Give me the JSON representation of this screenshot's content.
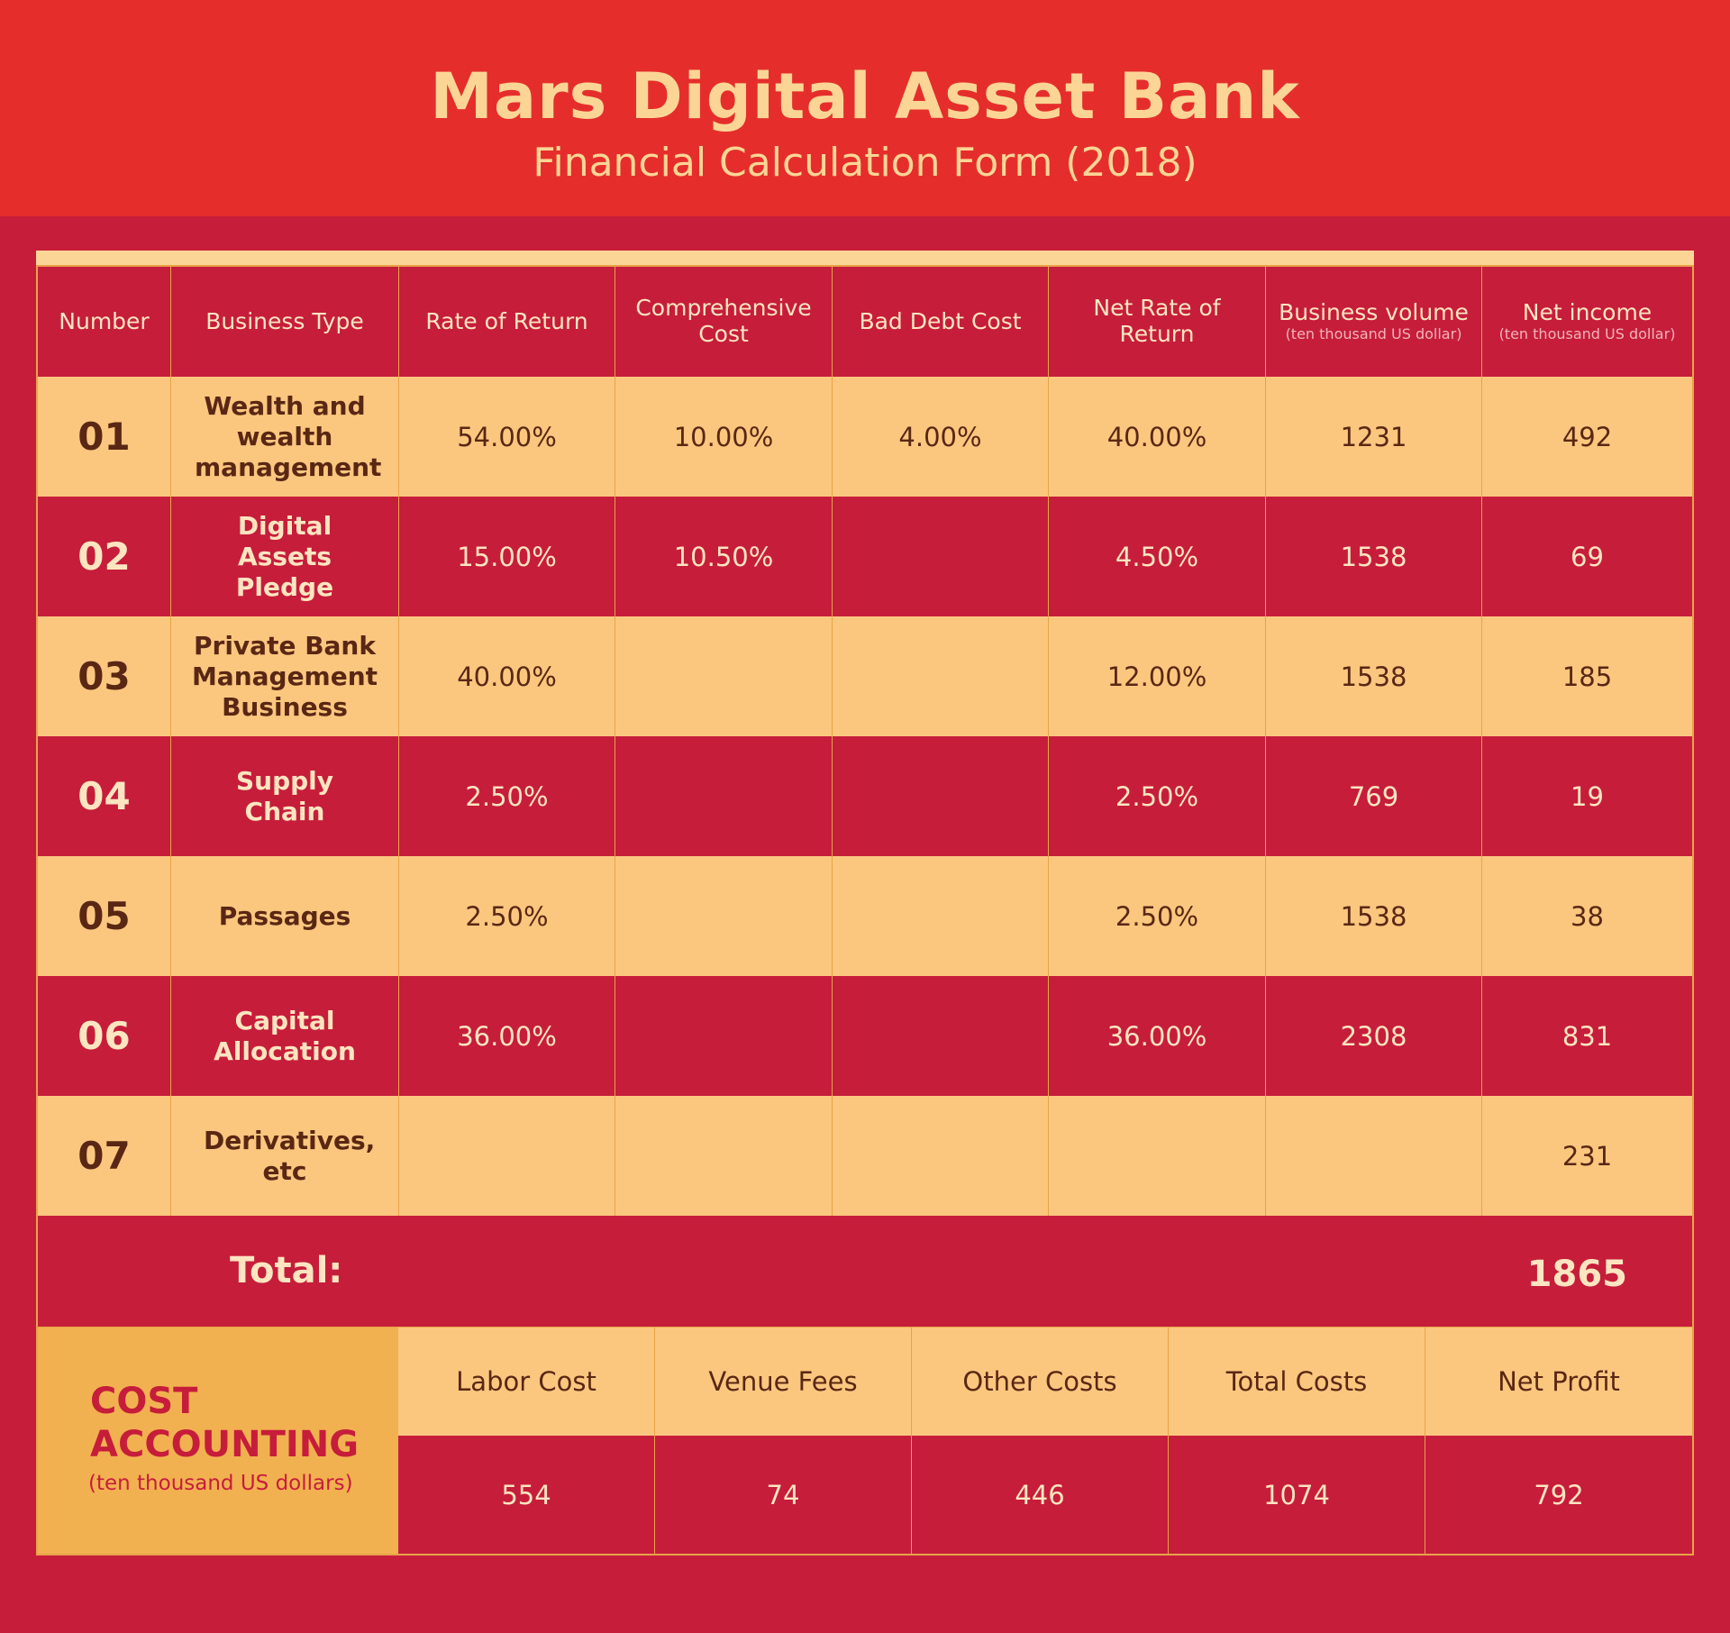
{
  "header": {
    "title": "Mars Digital Asset Bank",
    "subtitle": "Financial Calculation Form (2018)"
  },
  "table": {
    "columns": [
      {
        "label": "Number",
        "unit": ""
      },
      {
        "label": "Business Type",
        "unit": ""
      },
      {
        "label": "Rate of Return",
        "unit": ""
      },
      {
        "label": "Comprehensive Cost",
        "unit": ""
      },
      {
        "label": "Bad Debt Cost",
        "unit": ""
      },
      {
        "label": "Net Rate of Return",
        "unit": ""
      },
      {
        "label": "Business volume",
        "unit": "(ten thousand US dollar)"
      },
      {
        "label": "Net income",
        "unit": "(ten thousand US dollar)"
      }
    ],
    "rows": [
      {
        "number": "01",
        "type": "Wealth and wealth management",
        "rate": "54.00%",
        "comp_cost": "10.00%",
        "bad_debt": "4.00%",
        "net_rate": "40.00%",
        "volume": "1231",
        "net_income": "492"
      },
      {
        "number": "02",
        "type": "Digital Assets Pledge",
        "rate": "15.00%",
        "comp_cost": "10.50%",
        "bad_debt": "",
        "net_rate": "4.50%",
        "volume": "1538",
        "net_income": "69"
      },
      {
        "number": "03",
        "type": "Private Bank Management Business",
        "rate": "40.00%",
        "comp_cost": "",
        "bad_debt": "",
        "net_rate": "12.00%",
        "volume": "1538",
        "net_income": "185"
      },
      {
        "number": "04",
        "type": "Supply Chain",
        "rate": "2.50%",
        "comp_cost": "",
        "bad_debt": "",
        "net_rate": "2.50%",
        "volume": "769",
        "net_income": "19"
      },
      {
        "number": "05",
        "type": "Passages",
        "rate": "2.50%",
        "comp_cost": "",
        "bad_debt": "",
        "net_rate": "2.50%",
        "volume": "1538",
        "net_income": "38"
      },
      {
        "number": "06",
        "type": "Capital Allocation",
        "rate": "36.00%",
        "comp_cost": "",
        "bad_debt": "",
        "net_rate": "36.00%",
        "volume": "2308",
        "net_income": "831"
      },
      {
        "number": "07",
        "type": "Derivatives, etc",
        "rate": "",
        "comp_cost": "",
        "bad_debt": "",
        "net_rate": "",
        "volume": "",
        "net_income": "231"
      }
    ],
    "total_label": "Total:",
    "total_value": "1865"
  },
  "cost_accounting": {
    "title_line1": "COST",
    "title_line2": "ACCOUNTING",
    "unit": "(ten thousand US dollars)",
    "headers": [
      "Labor Cost",
      "Venue Fees",
      "Other Costs",
      "Total Costs",
      "Net Profit"
    ],
    "values": [
      "554",
      "74",
      "446",
      "1074",
      "792"
    ]
  }
}
